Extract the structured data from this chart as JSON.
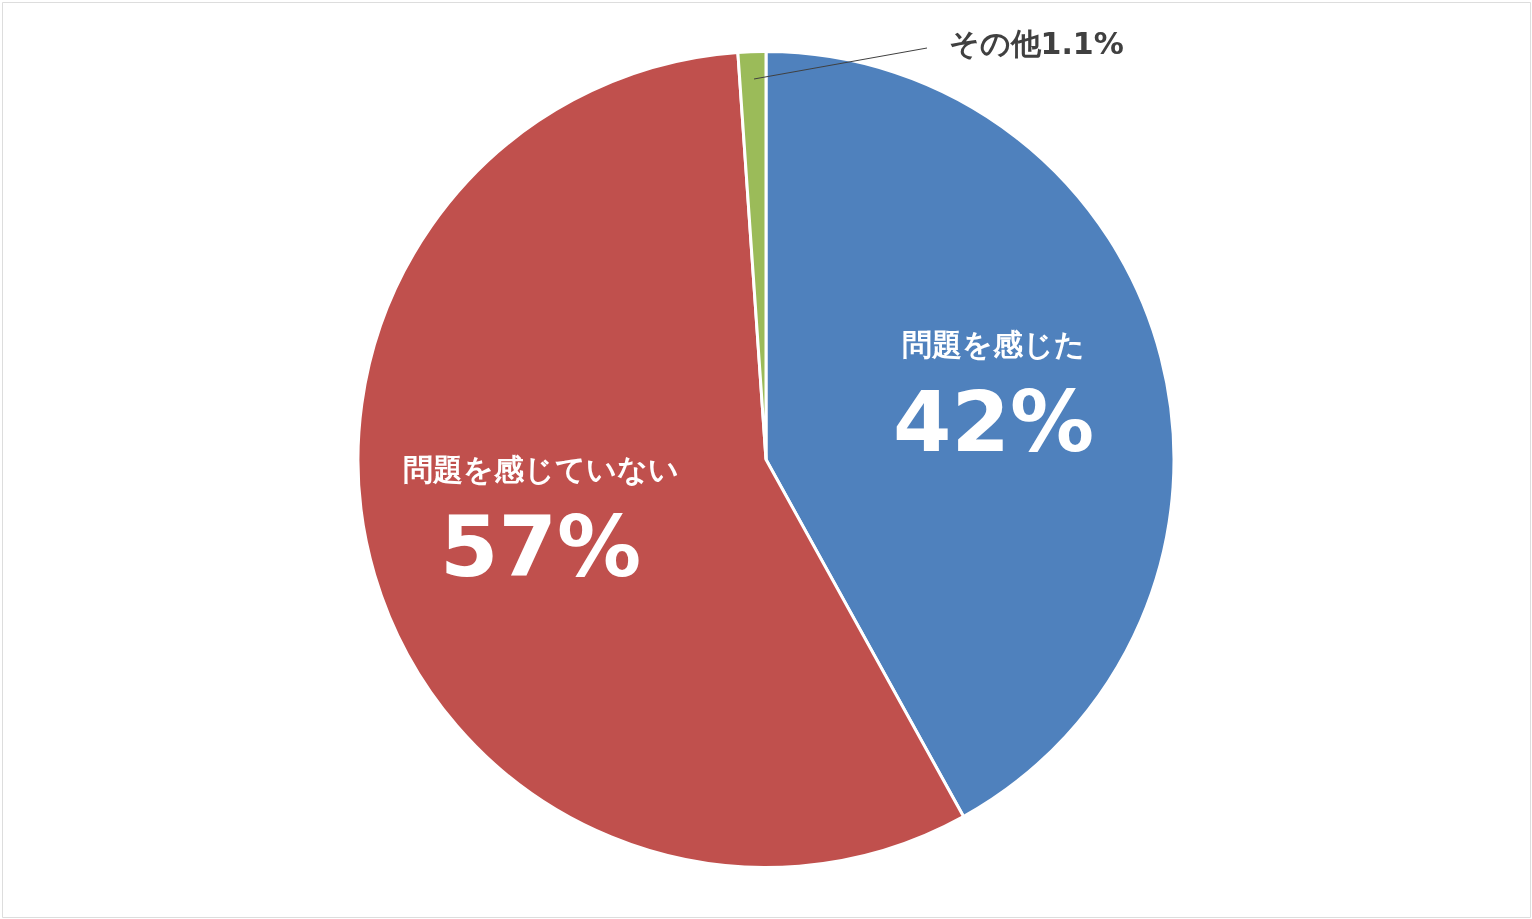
{
  "chart_data": {
    "type": "pie",
    "categories": [
      "問題を感じた",
      "問題を感じていない",
      "その他"
    ],
    "values": [
      42,
      57,
      1.1
    ],
    "colors": [
      "#4f81bd",
      "#c0504d",
      "#9bbb59"
    ],
    "value_labels": [
      "42%",
      "57%",
      "1.1%"
    ],
    "legend": false
  }
}
